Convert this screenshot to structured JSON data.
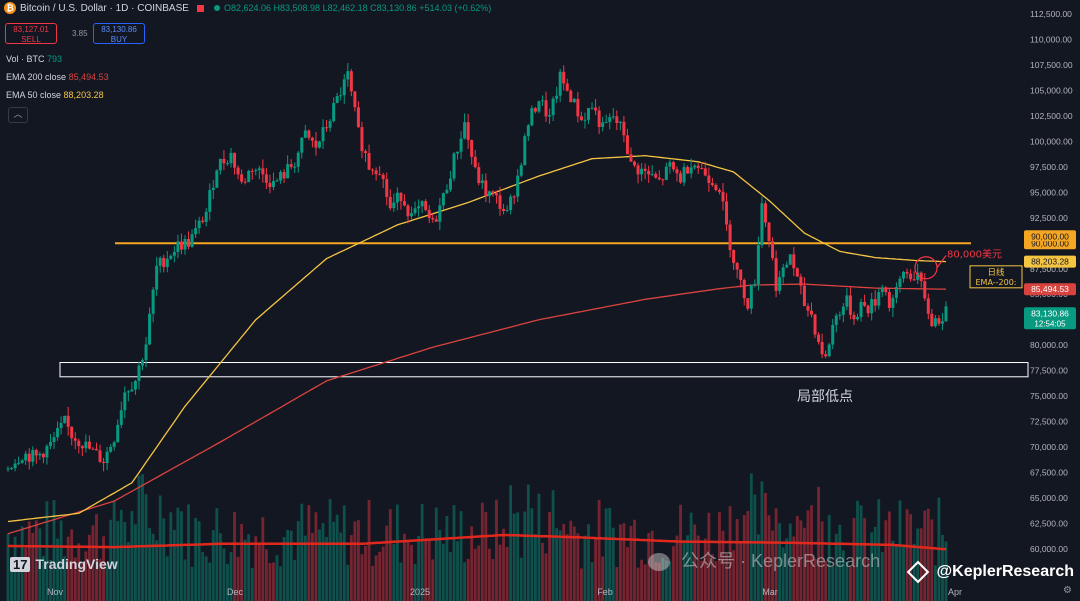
{
  "header": {
    "title": "Bitcoin / U.S. Dollar · 1D · COINBASE",
    "open": "O82,624.06",
    "high": "H83,508.98",
    "low": "L82,462.18",
    "close": "C83,130.86",
    "change": "+514.03 (+0.62%)",
    "sell_price": "83,127.01",
    "sell_label": "SELL",
    "spread": "3.85",
    "buy_price": "83,130.86",
    "buy_label": "BUY"
  },
  "legend": {
    "vol_label": "Vol · BTC",
    "vol_value": "793",
    "ema200_label": "EMA 200 close",
    "ema200_value": "85,494.53",
    "ema50_label": "EMA 50 close",
    "ema50_value": "88,203.28",
    "collapse_glyph": "︿"
  },
  "colors": {
    "up": "#089981",
    "down": "#f23645",
    "ema50": "#f5c542",
    "ema200": "#d9433f",
    "resistance": "#f5a623",
    "volume_ma": "#e0281d",
    "background": "#131722"
  },
  "watermark": {
    "logo": "TradingView",
    "wechat": "公众号 · KeplerResearch",
    "handle": "@KeplerResearch"
  },
  "chart_data": {
    "type": "candlestick",
    "title": "Bitcoin / U.S. Dollar · 1D · COINBASE",
    "x_ticks": [
      "Nov",
      "Dec",
      "2025",
      "Feb",
      "Mar",
      "Apr"
    ],
    "y_ticks": [
      "112,500.00",
      "110,000.00",
      "107,500.00",
      "105,000.00",
      "102,500.00",
      "100,000.00",
      "97,500.00",
      "95,000.00",
      "92,500.00",
      "90,000.00",
      "87,500.00",
      "85,000.00",
      "82,500.00",
      "80,000.00",
      "77,500.00",
      "75,000.00",
      "72,500.00",
      "70,000.00",
      "67,500.00",
      "65,000.00",
      "62,500.00",
      "60,000.00"
    ],
    "ylim": [
      58500,
      113500
    ],
    "close_path": [
      [
        0,
        68100
      ],
      [
        4,
        69300
      ],
      [
        8,
        69000
      ],
      [
        12,
        70200
      ],
      [
        16,
        72400
      ],
      [
        18,
        71200
      ],
      [
        21,
        70400
      ],
      [
        24,
        69500
      ],
      [
        27,
        68700
      ],
      [
        30,
        71000
      ],
      [
        33,
        75500
      ],
      [
        36,
        76600
      ],
      [
        39,
        80200
      ],
      [
        42,
        87600
      ],
      [
        45,
        88700
      ],
      [
        48,
        89800
      ],
      [
        51,
        90100
      ],
      [
        53,
        91100
      ],
      [
        56,
        93100
      ],
      [
        59,
        97600
      ],
      [
        63,
        98700
      ],
      [
        66,
        95800
      ],
      [
        69,
        97500
      ],
      [
        72,
        96800
      ],
      [
        75,
        95800
      ],
      [
        78,
        96800
      ],
      [
        81,
        98000
      ],
      [
        84,
        100600
      ],
      [
        87,
        99400
      ],
      [
        90,
        101500
      ],
      [
        93,
        104100
      ],
      [
        96,
        106400
      ],
      [
        99,
        100800
      ],
      [
        102,
        97600
      ],
      [
        105,
        97400
      ],
      [
        108,
        93400
      ],
      [
        111,
        94800
      ],
      [
        114,
        92600
      ],
      [
        117,
        93500
      ],
      [
        120,
        91800
      ],
      [
        123,
        94500
      ],
      [
        126,
        98200
      ],
      [
        129,
        101800
      ],
      [
        132,
        96900
      ],
      [
        135,
        95000
      ],
      [
        138,
        94300
      ],
      [
        141,
        92800
      ],
      [
        144,
        96500
      ],
      [
        147,
        101800
      ],
      [
        150,
        104200
      ],
      [
        153,
        102200
      ],
      [
        156,
        106200
      ],
      [
        159,
        104400
      ],
      [
        162,
        102100
      ],
      [
        165,
        103500
      ],
      [
        168,
        101200
      ],
      [
        171,
        102400
      ],
      [
        174,
        100800
      ],
      [
        176,
        97600
      ],
      [
        178,
        97300
      ],
      [
        181,
        96700
      ],
      [
        184,
        96000
      ],
      [
        187,
        97500
      ],
      [
        190,
        96400
      ],
      [
        193,
        98100
      ],
      [
        196,
        97200
      ],
      [
        199,
        96200
      ],
      [
        201,
        95500
      ],
      [
        203,
        91500
      ],
      [
        205,
        88500
      ],
      [
        207,
        85900
      ],
      [
        209,
        84200
      ],
      [
        211,
        86500
      ],
      [
        213,
        94000
      ],
      [
        215,
        90500
      ],
      [
        217,
        86000
      ],
      [
        219,
        87000
      ],
      [
        221,
        89000
      ],
      [
        223,
        86300
      ],
      [
        225,
        84000
      ],
      [
        227,
        83000
      ],
      [
        229,
        80300
      ],
      [
        231,
        78600
      ],
      [
        233,
        82000
      ],
      [
        235,
        83500
      ],
      [
        237,
        84200
      ],
      [
        239,
        82700
      ],
      [
        241,
        84000
      ],
      [
        243,
        83600
      ],
      [
        245,
        84300
      ],
      [
        247,
        86200
      ],
      [
        249,
        84000
      ],
      [
        251,
        85100
      ],
      [
        253,
        87200
      ],
      [
        255,
        86800
      ],
      [
        257,
        87000
      ],
      [
        259,
        84200
      ],
      [
        261,
        82300
      ],
      [
        263,
        82600
      ],
      [
        265,
        83130
      ]
    ],
    "ema50": [
      [
        0,
        62700
      ],
      [
        20,
        63500
      ],
      [
        35,
        66500
      ],
      [
        50,
        74000
      ],
      [
        70,
        82500
      ],
      [
        90,
        88500
      ],
      [
        110,
        91800
      ],
      [
        130,
        94000
      ],
      [
        150,
        96600
      ],
      [
        165,
        98300
      ],
      [
        180,
        98600
      ],
      [
        195,
        98000
      ],
      [
        205,
        97000
      ],
      [
        215,
        94200
      ],
      [
        225,
        91000
      ],
      [
        235,
        89200
      ],
      [
        245,
        88600
      ],
      [
        257,
        88300
      ],
      [
        265,
        88203
      ]
    ],
    "ema200": [
      [
        0,
        61500
      ],
      [
        30,
        64700
      ],
      [
        60,
        70500
      ],
      [
        90,
        76500
      ],
      [
        120,
        79800
      ],
      [
        150,
        82500
      ],
      [
        180,
        84500
      ],
      [
        200,
        85500
      ],
      [
        210,
        85900
      ],
      [
        225,
        86000
      ],
      [
        245,
        85600
      ],
      [
        265,
        85494
      ]
    ],
    "volume_ma": [
      [
        0,
        0.5
      ],
      [
        30,
        0.49
      ],
      [
        60,
        0.52
      ],
      [
        100,
        0.52
      ],
      [
        140,
        0.6
      ],
      [
        160,
        0.58
      ],
      [
        190,
        0.54
      ],
      [
        220,
        0.53
      ],
      [
        250,
        0.51
      ],
      [
        265,
        0.47
      ]
    ],
    "resistance": 90000,
    "local_low_box": [
      76900,
      78300
    ],
    "price_tags": [
      {
        "label": "90,000.00",
        "price": 90000,
        "color": "#f5a623",
        "text_color": "#131722"
      },
      {
        "label": "88,203.28",
        "price": 88203.28,
        "color": "#f5c542",
        "text_color": "#131722"
      },
      {
        "label": "85,494.53",
        "price": 85494.53,
        "color": "#d9433f",
        "text_color": "#ffffff"
      },
      {
        "label": "83,130.86",
        "price": 83130.86,
        "color": "#089981",
        "text_color": "#ffffff",
        "sub": "12:54:05"
      }
    ],
    "annotations": {
      "target": "80,000美元",
      "ema_box_line1": "日线",
      "ema_box_line2": "EMA--200:",
      "local_low": "局部低点"
    }
  }
}
